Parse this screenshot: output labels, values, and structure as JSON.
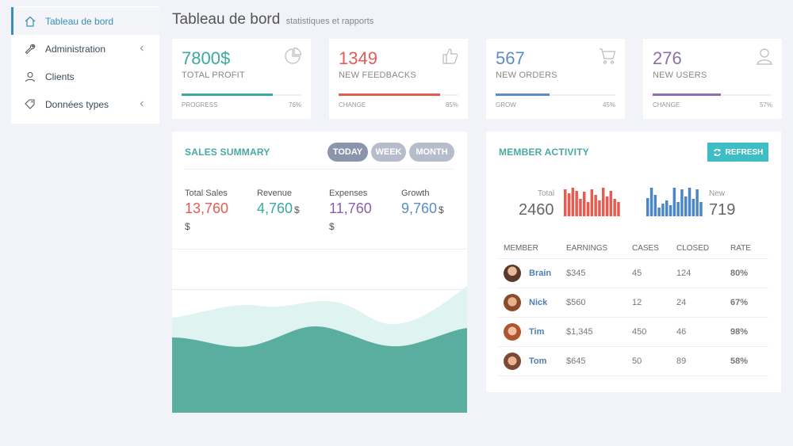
{
  "sidebar": {
    "items": [
      {
        "label": "Tableau de bord",
        "icon": "home-icon",
        "active": true,
        "chevron": false
      },
      {
        "label": "Administration",
        "icon": "wrench-icon",
        "active": false,
        "chevron": true
      },
      {
        "label": "Clients",
        "icon": "user-icon",
        "active": false,
        "chevron": false
      },
      {
        "label": "Données types",
        "icon": "tag-icon",
        "active": false,
        "chevron": true
      }
    ]
  },
  "header": {
    "title": "Tableau de bord",
    "subtitle": "statistiques et rapports"
  },
  "stats": [
    {
      "value": "7800$",
      "label": "TOTAL PROFIT",
      "icon": "pie-chart-icon",
      "color": "#3aa99e",
      "foot_label": "PROGRESS",
      "foot_value": "76%",
      "fill": 0.76
    },
    {
      "value": "1349",
      "label": "NEW FEEDBACKS",
      "icon": "thumbs-up-icon",
      "color": "#e35d55",
      "foot_label": "CHANGE",
      "foot_value": "85%",
      "fill": 0.85
    },
    {
      "value": "567",
      "label": "NEW ORDERS",
      "icon": "cart-icon",
      "color": "#5b8fc3",
      "foot_label": "GROW",
      "foot_value": "45%",
      "fill": 0.45
    },
    {
      "value": "276",
      "label": "NEW USERS",
      "icon": "user-icon",
      "color": "#8c6fae",
      "foot_label": "CHANGE",
      "foot_value": "57%",
      "fill": 0.57
    }
  ],
  "sales": {
    "title": "SALES SUMMARY",
    "tabs": [
      "TODAY",
      "WEEK",
      "MONTH"
    ],
    "active_tab": "TODAY",
    "items": [
      {
        "label": "Total Sales",
        "value": "13,760",
        "unit": "$",
        "color": "#e35d55"
      },
      {
        "label": "Revenue",
        "value": "4,760",
        "unit": "$",
        "color": "#3aa99e"
      },
      {
        "label": "Expenses",
        "value": "11,760",
        "unit": "$",
        "color": "#8c5fae"
      },
      {
        "label": "Growth",
        "value": "9,760",
        "unit": "$",
        "color": "#5b8fc3"
      }
    ]
  },
  "activity": {
    "title": "MEMBER ACTIVITY",
    "refresh_label": "REFRESH",
    "total_label": "Total",
    "total_value": "2460",
    "new_label": "New",
    "new_value": "719",
    "total_bars": [
      0.95,
      0.8,
      1.0,
      0.9,
      0.6,
      0.85,
      0.5,
      0.95,
      0.75,
      0.55,
      1.0,
      0.7,
      0.9,
      0.6,
      0.5
    ],
    "new_bars": [
      0.65,
      1.0,
      0.75,
      0.3,
      0.45,
      0.55,
      0.4,
      1.0,
      0.5,
      0.95,
      0.7,
      1.0,
      0.6,
      0.95,
      0.5
    ],
    "total_color": "#e9594f",
    "new_color": "#4b86c8",
    "columns": [
      "MEMBER",
      "EARNINGS",
      "CASES",
      "CLOSED",
      "RATE"
    ],
    "rows": [
      {
        "name": "Brain",
        "earnings": "$345",
        "cases": "45",
        "closed": "124",
        "rate": "80%"
      },
      {
        "name": "Nick",
        "earnings": "$560",
        "cases": "12",
        "closed": "24",
        "rate": "67%"
      },
      {
        "name": "Tim",
        "earnings": "$1,345",
        "cases": "450",
        "closed": "46",
        "rate": "98%"
      },
      {
        "name": "Tom",
        "earnings": "$645",
        "cases": "50",
        "closed": "89",
        "rate": "58%"
      }
    ]
  },
  "colors": {
    "accent": "#3c8dbc",
    "teal": "#3aa99e",
    "area_dark": "#5aae9f",
    "area_light": "#dff3f1"
  }
}
